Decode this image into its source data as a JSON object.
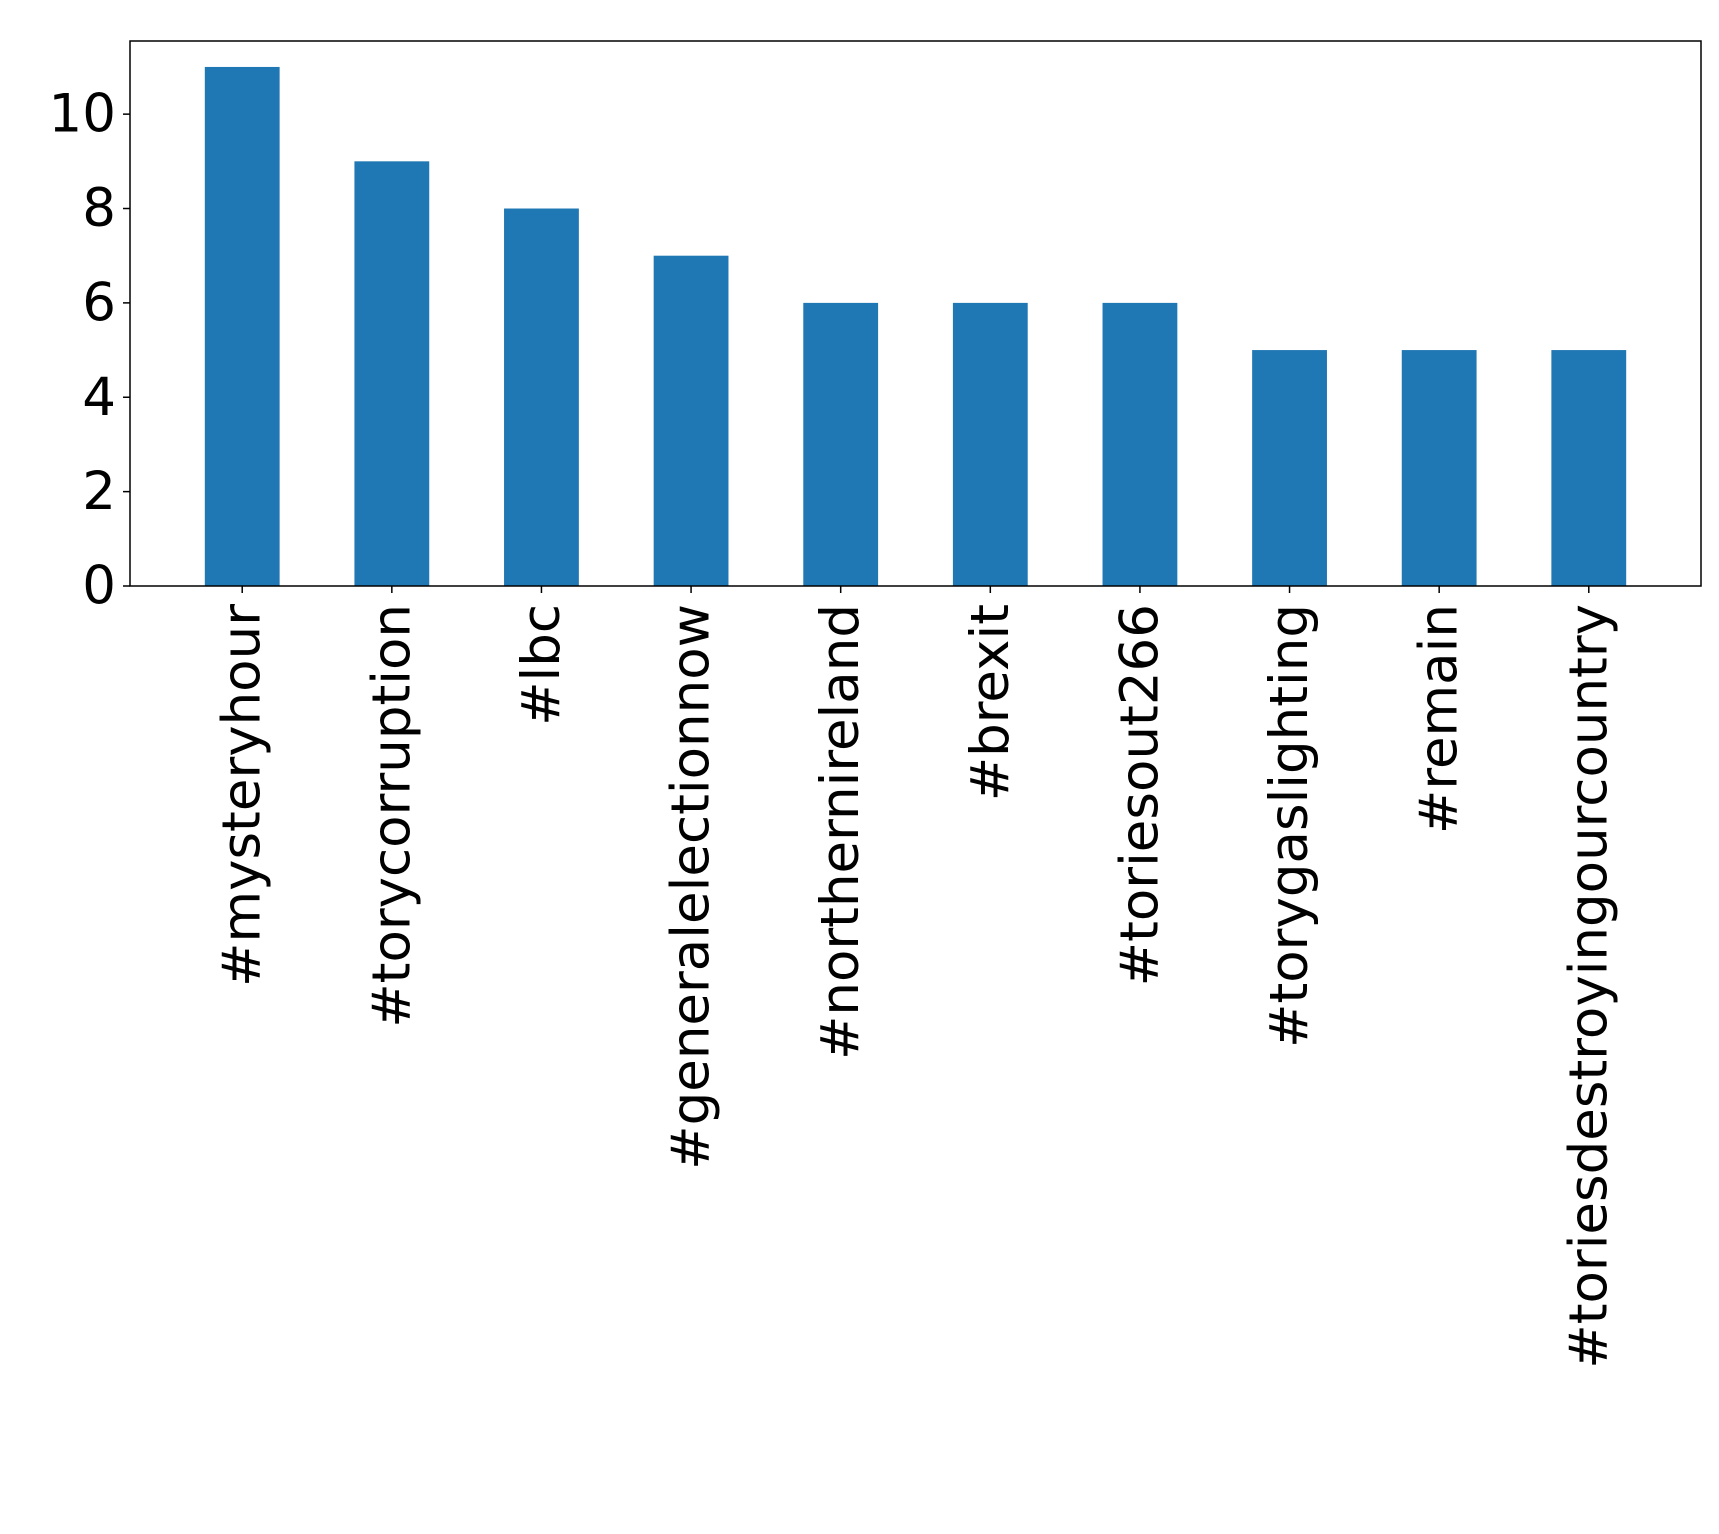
{
  "chart_data": {
    "type": "bar",
    "title": "",
    "xlabel": "",
    "ylabel": "",
    "categories": [
      "#mysteryhour",
      "#torycorruption",
      "#lbc",
      "#generalelectionnow",
      "#northernireland",
      "#brexit",
      "#toriesout266",
      "#torygaslighting",
      "#remain",
      "#toriesdestroyingourcountry"
    ],
    "values": [
      11,
      9,
      8,
      7,
      6,
      6,
      6,
      5,
      5,
      5
    ],
    "ylim": [
      0,
      11.55
    ],
    "yticks": [
      0,
      2,
      4,
      6,
      8,
      10
    ],
    "grid": false,
    "legend": "none",
    "bar_color": "#1f77b4"
  }
}
